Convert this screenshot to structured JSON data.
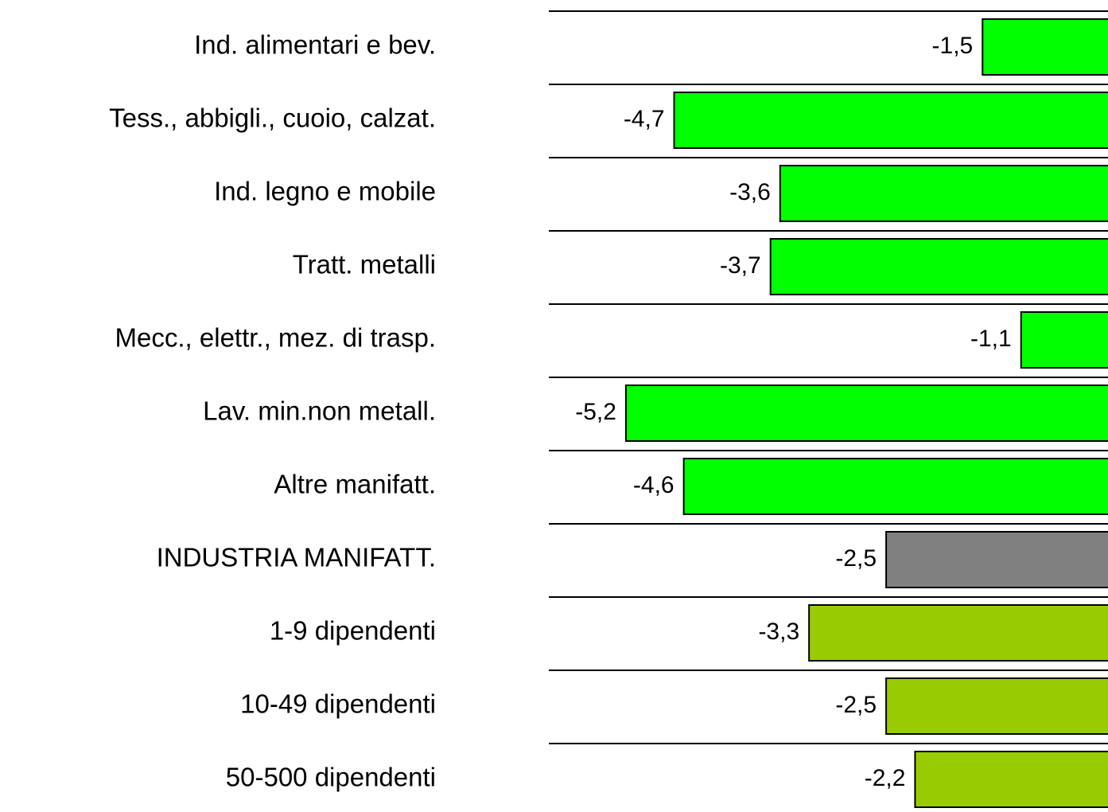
{
  "chart_data": {
    "type": "barh",
    "categories": [
      "Ind. alimentari e bev.",
      "Tess., abbigli., cuoio, calzat.",
      "Ind. legno e mobile",
      "Tratt. metalli",
      "Mecc., elettr., mez. di trasp.",
      "Lav. min.non metall.",
      "Altre manifatt.",
      "INDUSTRIA MANIFATT.",
      "1-9 dipendenti",
      "10-49 dipendenti",
      "50-500 dipendenti"
    ],
    "values": [
      -1.5,
      -4.7,
      -3.6,
      -3.7,
      -1.1,
      -5.2,
      -4.6,
      -2.5,
      -3.3,
      -2.5,
      -2.2
    ],
    "value_labels": [
      "-1,5",
      "-4,7",
      "-3,6",
      "-3,7",
      "-1,1",
      "-5,2",
      "-4,6",
      "-2,5",
      "-3,3",
      "-2,5",
      "-2,2"
    ],
    "colors": [
      "#00ff00",
      "#00ff00",
      "#00ff00",
      "#00ff00",
      "#00ff00",
      "#00ff00",
      "#00ff00",
      "#808080",
      "#99cc00",
      "#99cc00",
      "#99cc00"
    ],
    "xlim": [
      -6,
      0
    ]
  }
}
